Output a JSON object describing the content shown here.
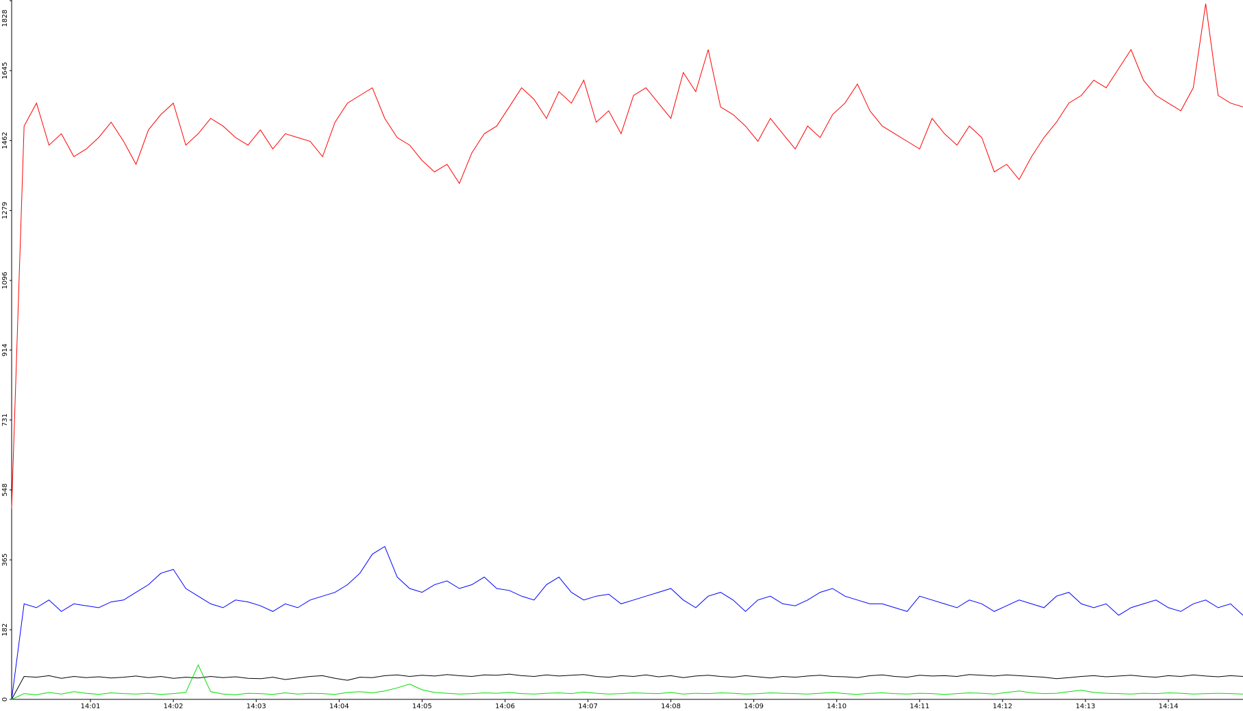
{
  "chart_data": {
    "type": "line",
    "xlim": [
      0.05,
      14.9
    ],
    "xticks": [
      {
        "value": 1,
        "label": "14:01"
      },
      {
        "value": 2,
        "label": "14:02"
      },
      {
        "value": 3,
        "label": "14:03"
      },
      {
        "value": 4,
        "label": "14:04"
      },
      {
        "value": 5,
        "label": "14:05"
      },
      {
        "value": 6,
        "label": "14:06"
      },
      {
        "value": 7,
        "label": "14:07"
      },
      {
        "value": 8,
        "label": "14:08"
      },
      {
        "value": 9,
        "label": "14:09"
      },
      {
        "value": 10,
        "label": "14:10"
      },
      {
        "value": 11,
        "label": "14:11"
      },
      {
        "value": 12,
        "label": "14:12"
      },
      {
        "value": 13,
        "label": "14:13"
      },
      {
        "value": 14,
        "label": "14:14"
      }
    ],
    "ylim": [
      0,
      1828
    ],
    "yticks": [
      0,
      182,
      365,
      548,
      731,
      914,
      1096,
      1279,
      1462,
      1645,
      1828
    ],
    "grid": false,
    "series": [
      {
        "color": "#ff0000",
        "values": [
          500,
          1500,
          1560,
          1450,
          1480,
          1420,
          1440,
          1470,
          1510,
          1460,
          1400,
          1490,
          1530,
          1560,
          1450,
          1480,
          1520,
          1500,
          1470,
          1450,
          1490,
          1440,
          1480,
          1470,
          1460,
          1420,
          1510,
          1560,
          1580,
          1600,
          1520,
          1470,
          1450,
          1410,
          1380,
          1400,
          1350,
          1430,
          1480,
          1500,
          1550,
          1600,
          1570,
          1520,
          1590,
          1560,
          1620,
          1510,
          1540,
          1480,
          1580,
          1600,
          1560,
          1520,
          1640,
          1590,
          1700,
          1550,
          1530,
          1500,
          1460,
          1520,
          1480,
          1440,
          1500,
          1470,
          1530,
          1560,
          1610,
          1540,
          1500,
          1480,
          1460,
          1440,
          1520,
          1480,
          1450,
          1500,
          1470,
          1380,
          1400,
          1360,
          1420,
          1470,
          1510,
          1560,
          1580,
          1620,
          1600,
          1650,
          1700,
          1620,
          1580,
          1560,
          1540,
          1600,
          1820,
          1580,
          1560,
          1550
        ]
      },
      {
        "color": "#0000ff",
        "values": [
          0,
          250,
          240,
          260,
          230,
          250,
          245,
          240,
          255,
          260,
          280,
          300,
          330,
          340,
          290,
          270,
          250,
          240,
          260,
          255,
          245,
          230,
          250,
          240,
          260,
          270,
          280,
          300,
          330,
          380,
          400,
          320,
          290,
          280,
          300,
          310,
          290,
          300,
          320,
          290,
          285,
          270,
          260,
          300,
          320,
          280,
          260,
          270,
          275,
          250,
          260,
          270,
          280,
          290,
          260,
          240,
          270,
          280,
          260,
          230,
          260,
          270,
          250,
          245,
          260,
          280,
          290,
          270,
          260,
          250,
          250,
          240,
          230,
          270,
          260,
          250,
          240,
          260,
          250,
          230,
          245,
          260,
          250,
          240,
          270,
          280,
          250,
          240,
          250,
          220,
          240,
          250,
          260,
          240,
          230,
          250,
          260,
          240,
          250,
          220
        ]
      },
      {
        "color": "#000000",
        "values": [
          0,
          60,
          58,
          62,
          55,
          60,
          57,
          59,
          56,
          58,
          61,
          57,
          60,
          55,
          58,
          56,
          60,
          57,
          59,
          55,
          54,
          58,
          52,
          56,
          60,
          62,
          55,
          50,
          58,
          57,
          62,
          64,
          60,
          63,
          61,
          65,
          62,
          60,
          64,
          63,
          66,
          62,
          60,
          64,
          61,
          63,
          65,
          60,
          58,
          62,
          60,
          64,
          59,
          62,
          57,
          61,
          63,
          60,
          58,
          62,
          59,
          56,
          60,
          58,
          61,
          63,
          60,
          59,
          57,
          62,
          64,
          60,
          58,
          63,
          61,
          62,
          60,
          65,
          63,
          61,
          64,
          62,
          60,
          58,
          54,
          57,
          60,
          62,
          59,
          61,
          63,
          60,
          58,
          62,
          60,
          64,
          61,
          59,
          62,
          60
        ]
      },
      {
        "color": "#00dd00",
        "values": [
          0,
          15,
          12,
          18,
          14,
          20,
          16,
          13,
          17,
          15,
          14,
          16,
          13,
          15,
          18,
          90,
          20,
          14,
          12,
          16,
          15,
          13,
          17,
          14,
          16,
          15,
          13,
          18,
          20,
          17,
          22,
          30,
          40,
          25,
          18,
          16,
          14,
          15,
          17,
          16,
          18,
          15,
          14,
          16,
          17,
          15,
          19,
          16,
          14,
          15,
          17,
          16,
          15,
          18,
          14,
          16,
          15,
          17,
          16,
          14,
          15,
          17,
          16,
          15,
          14,
          16,
          18,
          15,
          13,
          16,
          17,
          15,
          14,
          16,
          15,
          13,
          15,
          17,
          16,
          14,
          18,
          22,
          17,
          15,
          16,
          20,
          24,
          18,
          16,
          15,
          14,
          16,
          15,
          17,
          16,
          14,
          15,
          16,
          15,
          14
        ]
      }
    ]
  }
}
